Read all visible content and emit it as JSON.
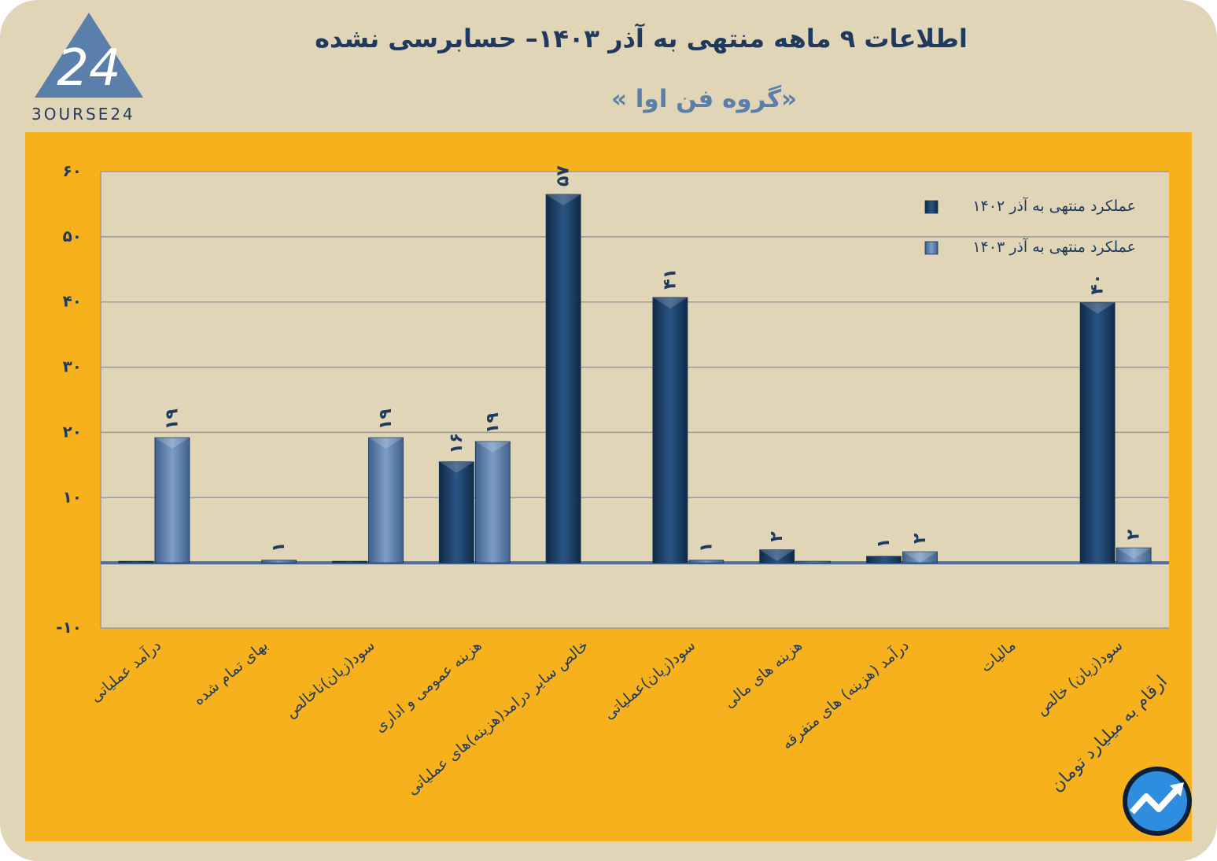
{
  "header": {
    "title": "اطلاعات ۹ ماهه منتهی به آذر ۱۴۰۳– حسابرسی نشده",
    "subtitle": "«گروه فن اوا »"
  },
  "logo": {
    "text": "3OURSE24",
    "mark": "24"
  },
  "note": {
    "text": "ارقام به میلیارد تومان"
  },
  "colors": {
    "series_1402": "#1f4670",
    "series_1403": "#5b7fab",
    "panel": "#f6b11c",
    "plot_bg": "#e0d5b7"
  },
  "chart_data": {
    "type": "bar",
    "title": "",
    "xlabel": "",
    "ylabel": "",
    "ylim": [
      -10,
      60
    ],
    "yticks": [
      -10,
      10,
      20,
      30,
      40,
      50,
      60
    ],
    "ytick_labels": [
      "-۱۰",
      "۱۰",
      "۲۰",
      "۳۰",
      "۴۰",
      "۵۰",
      "۶۰"
    ],
    "grid": true,
    "legend_position": "top-right",
    "categories": [
      "درآمد عملیاتی",
      "بهای تمام شده",
      "سود(زیان)ناخالص",
      "هزینه عمومی و اداری",
      "خالص سایر درامد(هزینه)های عملیاتی",
      "سود(زیان)عملیاتی",
      "هزینه های مالی",
      "درآمد (هزینه) های متفرقه",
      "مالیات",
      "سود(زیان) خالص"
    ],
    "series": [
      {
        "name": "عملکرد منتهی به آذر ۱۴۰۲",
        "values": [
          0,
          null,
          0,
          15.5,
          56.5,
          40.7,
          2,
          1,
          null,
          39.9
        ],
        "labels": [
          "",
          "",
          "",
          "۱۶",
          "۵۷",
          "۴۱",
          "۲",
          "۱",
          "",
          "۴۰"
        ]
      },
      {
        "name": "عملکرد منتهی به آذر ۱۴۰۳",
        "values": [
          19.2,
          0.4,
          19.2,
          18.6,
          null,
          0.4,
          0,
          1.7,
          null,
          2.3
        ],
        "labels": [
          "۱۹",
          "۱",
          "۱۹",
          "۱۹",
          "",
          "۱",
          "",
          "۲",
          "",
          "۲"
        ]
      }
    ]
  }
}
